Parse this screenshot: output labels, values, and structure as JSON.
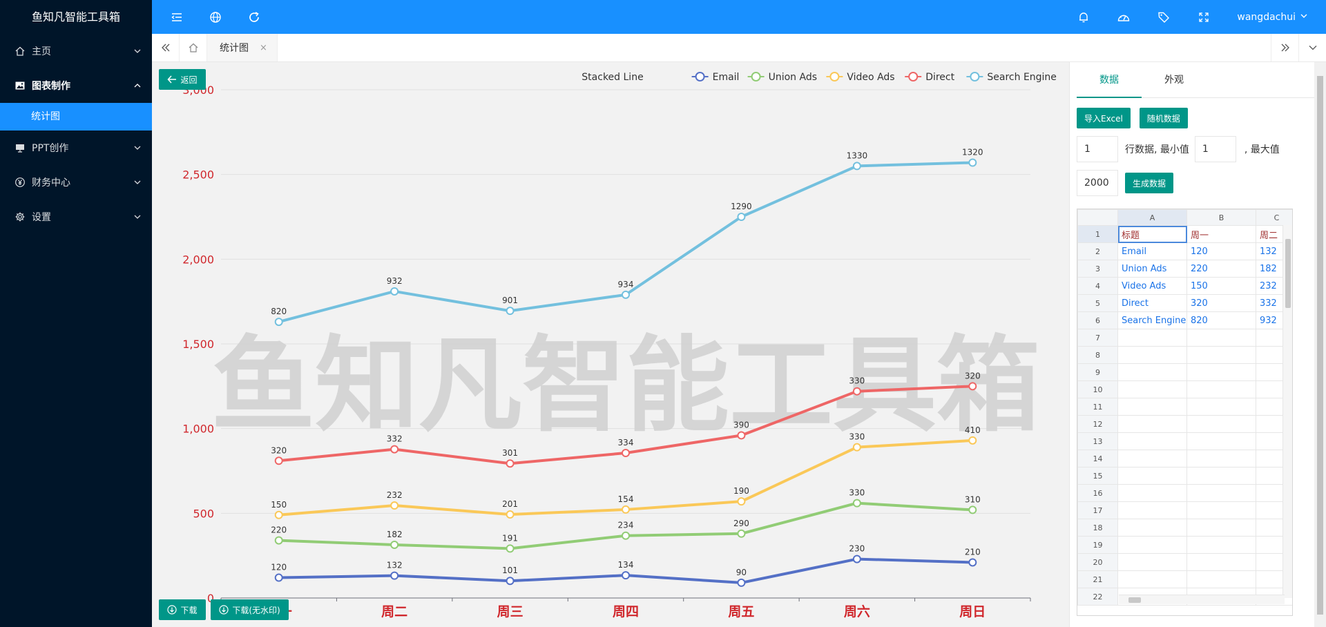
{
  "brand": "鱼知凡智能工具箱",
  "sidebar": {
    "items": [
      {
        "label": "主页"
      },
      {
        "label": "图表制作"
      },
      {
        "label": "PPT创作"
      },
      {
        "label": "财务中心"
      },
      {
        "label": "设置"
      }
    ],
    "subitem": "统计图"
  },
  "header": {
    "username": "wangdachui"
  },
  "tabs": {
    "active": "统计图",
    "close": "×"
  },
  "content": {
    "back_label": "返回",
    "download_label": "下载",
    "download_nowm_label": "下载(无水印)",
    "watermark": "鱼知凡智能工具箱"
  },
  "chart_data": {
    "type": "line",
    "title": "Stacked Line",
    "categories": [
      "周一",
      "周二",
      "周三",
      "周四",
      "周五",
      "周六",
      "周日"
    ],
    "ylim": [
      0,
      3000
    ],
    "yticks": [
      0,
      500,
      1000,
      1500,
      2000,
      2500,
      3000
    ],
    "ytick_labels": [
      "0",
      "500",
      "1,000",
      "1,500",
      "2,000",
      "2,500",
      "3,000"
    ],
    "stacked": true,
    "legend_position": "top-right",
    "series": [
      {
        "name": "Email",
        "color": "#5470c6",
        "values": [
          120,
          132,
          101,
          134,
          90,
          230,
          210
        ]
      },
      {
        "name": "Union Ads",
        "color": "#91cc75",
        "values": [
          220,
          182,
          191,
          234,
          290,
          330,
          310
        ]
      },
      {
        "name": "Video Ads",
        "color": "#fac858",
        "values": [
          150,
          232,
          201,
          154,
          190,
          330,
          410
        ]
      },
      {
        "name": "Direct",
        "color": "#ee6666",
        "values": [
          320,
          332,
          301,
          334,
          390,
          330,
          320
        ]
      },
      {
        "name": "Search Engine",
        "color": "#73c0de",
        "values": [
          820,
          932,
          901,
          934,
          1290,
          1330,
          1320
        ]
      }
    ]
  },
  "panel": {
    "tabs": [
      "数据",
      "外观"
    ],
    "import_label": "导入Excel",
    "random_label": "随机数据",
    "rows_value": "1",
    "rows_text": "行数据, 最小值",
    "min_value": "1",
    "max_text": ", 最大值",
    "max_value": "2000",
    "generate_label": "生成数据"
  },
  "sheet": {
    "columns": [
      "A",
      "B",
      "C"
    ],
    "rows": [
      [
        "标题",
        "周一",
        "周二"
      ],
      [
        "Email",
        "120",
        "132"
      ],
      [
        "Union Ads",
        "220",
        "182"
      ],
      [
        "Video Ads",
        "150",
        "232"
      ],
      [
        "Direct",
        "320",
        "332"
      ],
      [
        "Search Engine",
        "820",
        "932"
      ]
    ],
    "row_count": 22
  }
}
